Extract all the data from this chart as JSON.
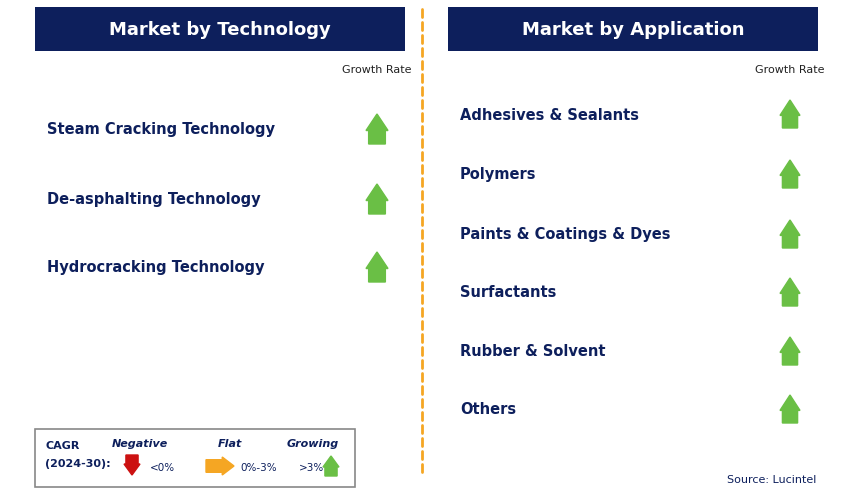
{
  "left_header": "Market by Technology",
  "right_header": "Market by Application",
  "left_items": [
    "Steam Cracking Technology",
    "De-asphalting Technology",
    "Hydrocracking Technology"
  ],
  "right_items": [
    "Adhesives & Sealants",
    "Polymers",
    "Paints & Coatings & Dyes",
    "Surfactants",
    "Rubber & Solvent",
    "Others"
  ],
  "header_bg_color": "#0d1f5c",
  "header_text_color": "#ffffff",
  "item_text_color": "#0d1f5c",
  "growth_rate_label_color": "#222222",
  "arrow_growing_color": "#6abf45",
  "arrow_flat_color": "#f5a623",
  "arrow_negative_color": "#cc1111",
  "dashed_line_color": "#f5a623",
  "background_color": "#ffffff",
  "legend_border_color": "#888888",
  "source_text": "Source: Lucintel",
  "fig_w": 8.44,
  "fig_h": 5.02,
  "dpi": 100
}
